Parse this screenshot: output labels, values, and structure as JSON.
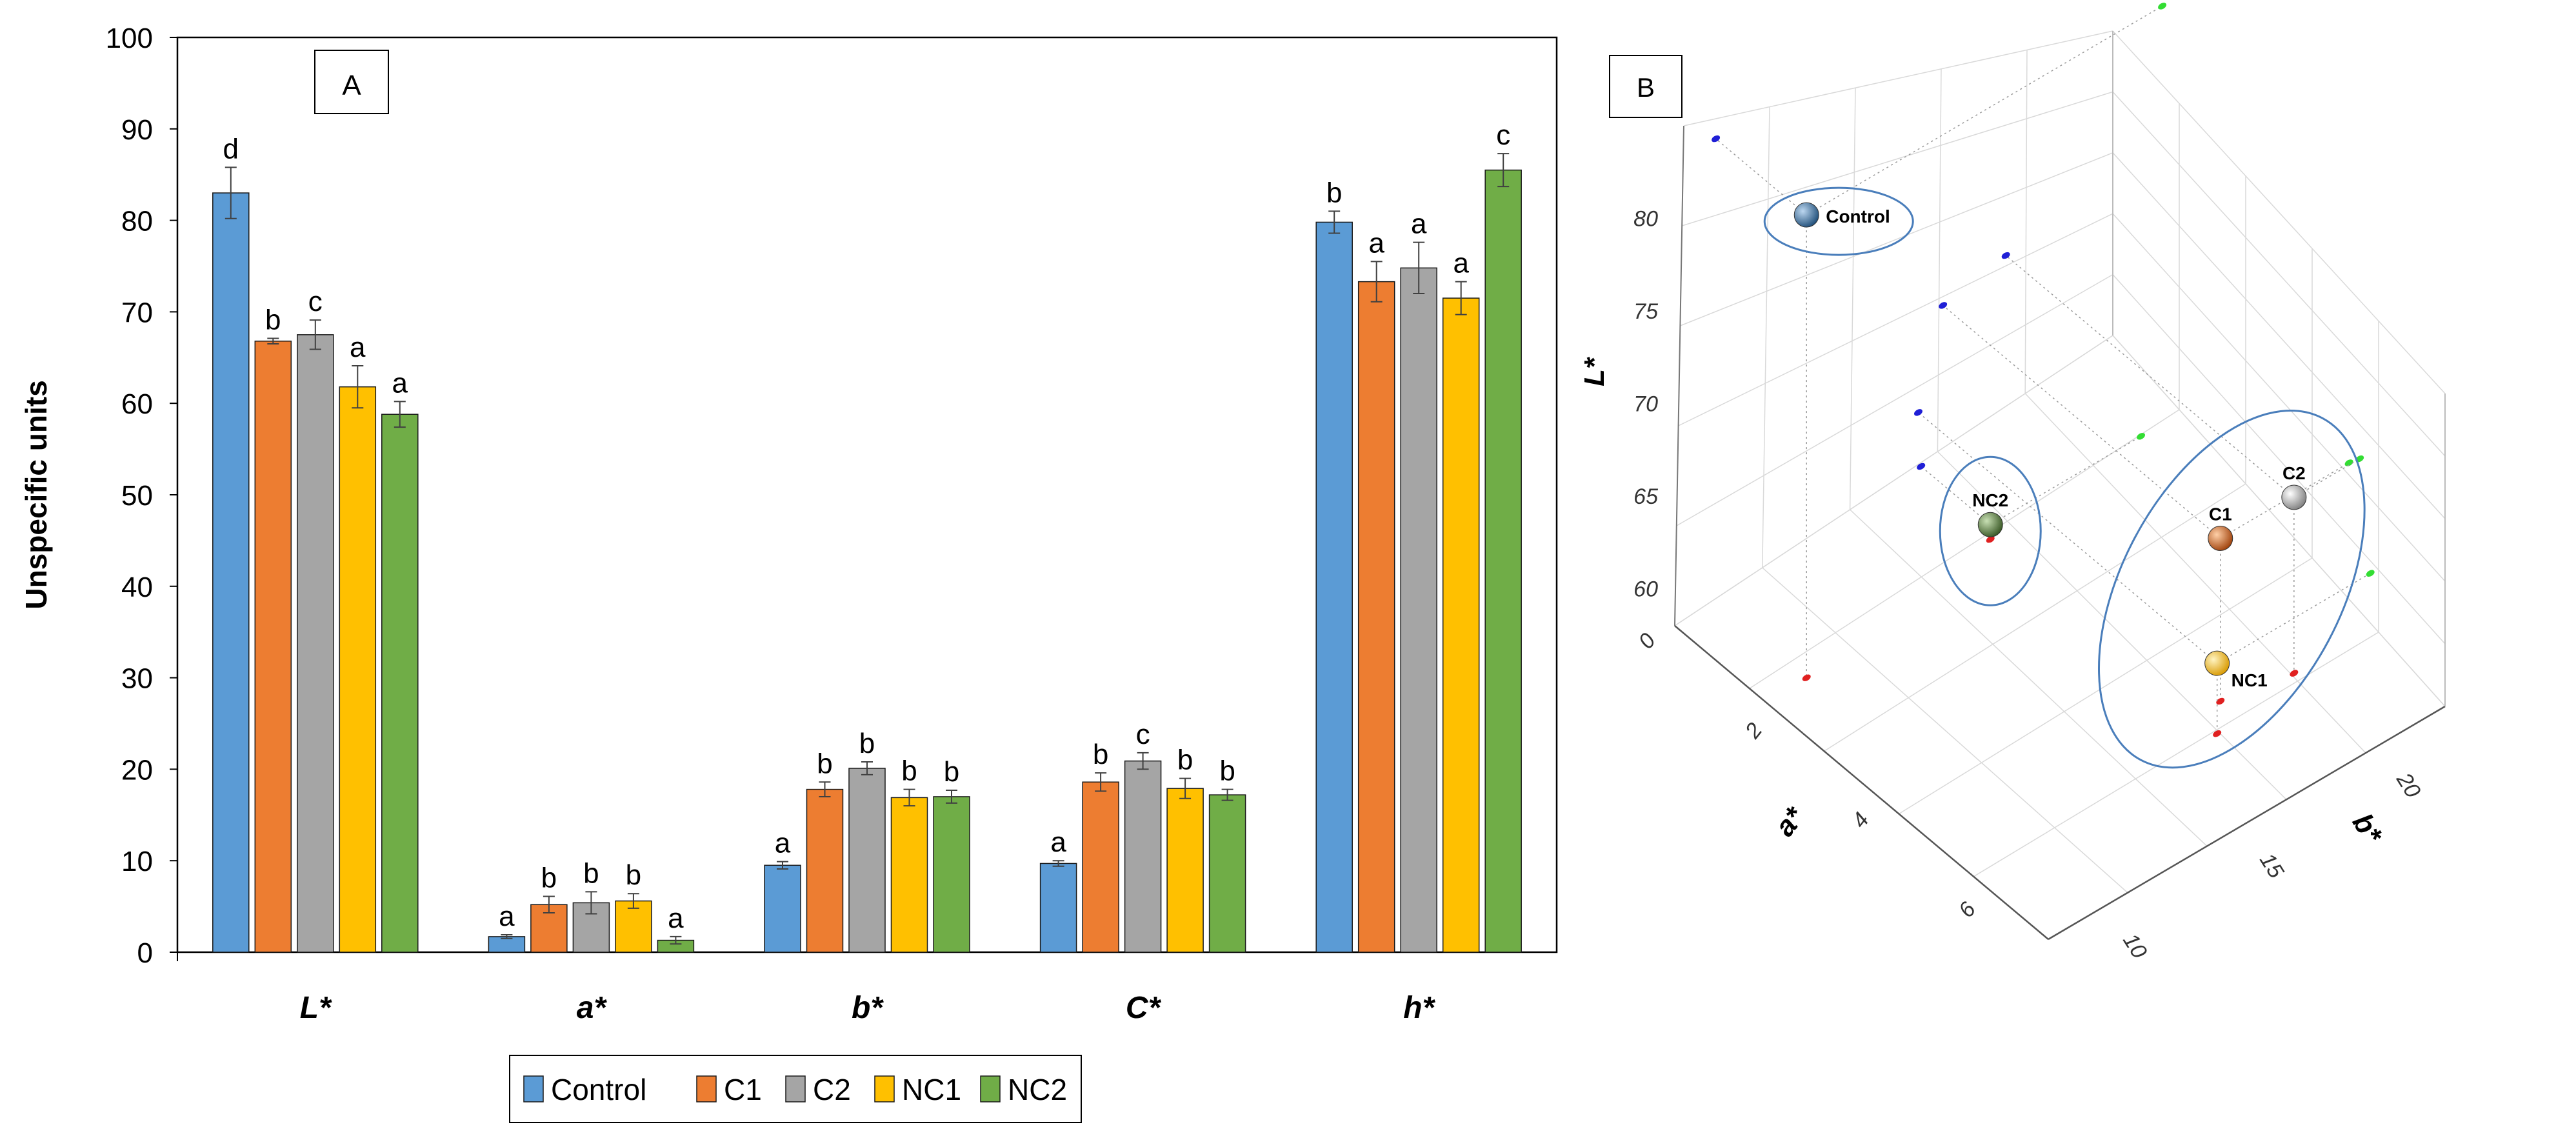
{
  "chart_data": [
    {
      "type": "bar",
      "panel_label": "A",
      "ylabel": "Unspecific units",
      "ylim": [
        0,
        100
      ],
      "yticks": [
        "0",
        "10",
        "20",
        "30",
        "40",
        "50",
        "60",
        "70",
        "80",
        "90",
        "100"
      ],
      "categories": [
        "L*",
        "a*",
        "b*",
        "C*",
        "h*"
      ],
      "series": [
        {
          "name": "Control",
          "color": "#5b9bd5",
          "values": [
            83,
            1.7,
            9.5,
            9.7,
            79.8
          ],
          "errors": [
            2.8,
            0.2,
            0.4,
            0.3,
            1.2
          ],
          "letters": [
            "d",
            "a",
            "a",
            "a",
            "b"
          ]
        },
        {
          "name": "C1",
          "color": "#ed7d31",
          "values": [
            66.8,
            5.2,
            17.8,
            18.6,
            73.3
          ],
          "errors": [
            0.3,
            0.9,
            0.8,
            1.0,
            2.2
          ],
          "letters": [
            "b",
            "b",
            "b",
            "b",
            "a"
          ]
        },
        {
          "name": "C2",
          "color": "#a5a5a5",
          "values": [
            67.5,
            5.4,
            20.1,
            20.9,
            74.8
          ],
          "errors": [
            1.6,
            1.2,
            0.7,
            0.9,
            2.8
          ],
          "letters": [
            "c",
            "b",
            "b",
            "c",
            "a"
          ]
        },
        {
          "name": "NC1",
          "color": "#ffc000",
          "values": [
            61.8,
            5.6,
            16.9,
            17.9,
            71.5
          ],
          "errors": [
            2.3,
            0.8,
            0.9,
            1.1,
            1.8
          ],
          "letters": [
            "a",
            "b",
            "b",
            "b",
            "a"
          ]
        },
        {
          "name": "NC2",
          "color": "#70ad47",
          "values": [
            58.8,
            1.3,
            17.0,
            17.2,
            85.5
          ],
          "errors": [
            1.4,
            0.4,
            0.7,
            0.6,
            1.8
          ],
          "letters": [
            "a",
            "a",
            "b",
            "b",
            "c"
          ]
        }
      ],
      "legend": {
        "position": "bottom",
        "entries": [
          "Control",
          "C1",
          "C2",
          "NC1",
          "NC2"
        ]
      }
    },
    {
      "type": "scatter3d",
      "panel_label": "B",
      "axes": {
        "x": {
          "label": "a*",
          "ticks": [
            "0",
            "2",
            "4",
            "6"
          ]
        },
        "y": {
          "label": "b*",
          "ticks": [
            "10",
            "15",
            "20"
          ]
        },
        "z": {
          "label": "L*",
          "ticks": [
            "60",
            "65",
            "70",
            "75",
            "80"
          ]
        }
      },
      "points": [
        {
          "name": "Control",
          "color": "#2e75b6",
          "a": 1.7,
          "b": 9.5,
          "L": 83.0
        },
        {
          "name": "C1",
          "color": "#c55a11",
          "a": 5.2,
          "b": 17.8,
          "L": 66.8
        },
        {
          "name": "C2",
          "color": "#a5a5a5",
          "a": 5.4,
          "b": 20.1,
          "L": 67.5
        },
        {
          "name": "NC1",
          "color": "#ffc000",
          "a": 5.6,
          "b": 16.9,
          "L": 61.8
        },
        {
          "name": "NC2",
          "color": "#548235",
          "a": 1.3,
          "b": 17.0,
          "L": 58.8
        }
      ],
      "group_ellipses": [
        [
          "Control"
        ],
        [
          "NC2"
        ],
        [
          "C1",
          "C2",
          "NC1"
        ]
      ]
    }
  ]
}
